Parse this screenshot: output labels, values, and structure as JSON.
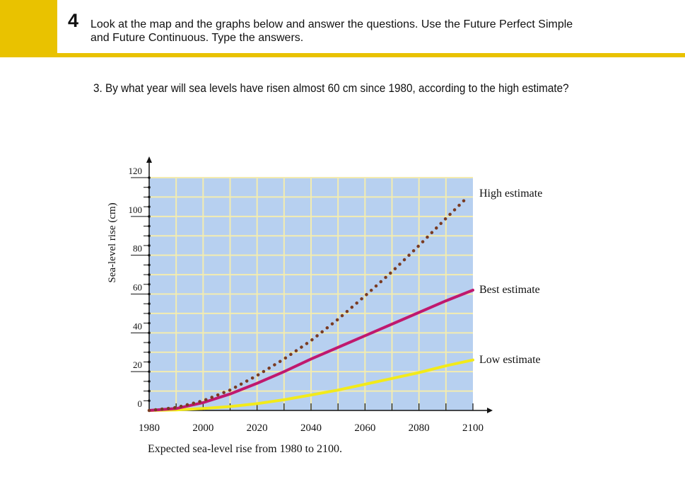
{
  "exercise": {
    "number": "4",
    "instruction_line1": "Look at the map and the graphs below and answer the questions. Use the Future Perfect Simple",
    "instruction_line2": "and Future Continuous. Type the answers."
  },
  "question": {
    "text": "3.  By what year will sea levels have risen almost 60 cm since 1980, according to the high estimate?"
  },
  "colors": {
    "accent": "#e9c200",
    "plot_background": "#b7d0f0",
    "grid": "#f3ecb0",
    "high": "#7a3b22",
    "best": "#c0186e",
    "low": "#f2ea1a"
  },
  "chart_data": {
    "type": "line",
    "title": "",
    "xlabel": "Expected sea-level rise from 1980 to 2100.",
    "ylabel": "Sea-level rise (cm)",
    "xlim": [
      1980,
      2100
    ],
    "ylim": [
      0,
      120
    ],
    "x_ticks": [
      1980,
      2000,
      2020,
      2040,
      2060,
      2080,
      2100
    ],
    "y_ticks": [
      0,
      20,
      40,
      60,
      80,
      100,
      120
    ],
    "grid": true,
    "legend": "labels at line ends (right)",
    "series": [
      {
        "name": "High estimate",
        "style": "dotted",
        "x": [
          1980,
          1990,
          2000,
          2010,
          2020,
          2030,
          2040,
          2050,
          2060,
          2070,
          2080,
          2090,
          2098
        ],
        "y": [
          0,
          1.5,
          5,
          10.5,
          18,
          26.5,
          36,
          47,
          59,
          71.5,
          85,
          99,
          110
        ]
      },
      {
        "name": "Best estimate",
        "style": "solid",
        "x": [
          1980,
          1990,
          2000,
          2010,
          2020,
          2030,
          2040,
          2050,
          2060,
          2070,
          2080,
          2090,
          2100
        ],
        "y": [
          0,
          1,
          4,
          8.5,
          14,
          20,
          26.5,
          32.5,
          38.5,
          44.5,
          50.5,
          56.5,
          62
        ]
      },
      {
        "name": "Low estimate",
        "style": "solid",
        "x": [
          1980,
          1990,
          2000,
          2010,
          2020,
          2030,
          2040,
          2050,
          2060,
          2070,
          2080,
          2090,
          2100
        ],
        "y": [
          0,
          0.3,
          1,
          2,
          3.5,
          5.5,
          8,
          10.5,
          13.5,
          16.5,
          19.5,
          23,
          26
        ]
      }
    ]
  }
}
